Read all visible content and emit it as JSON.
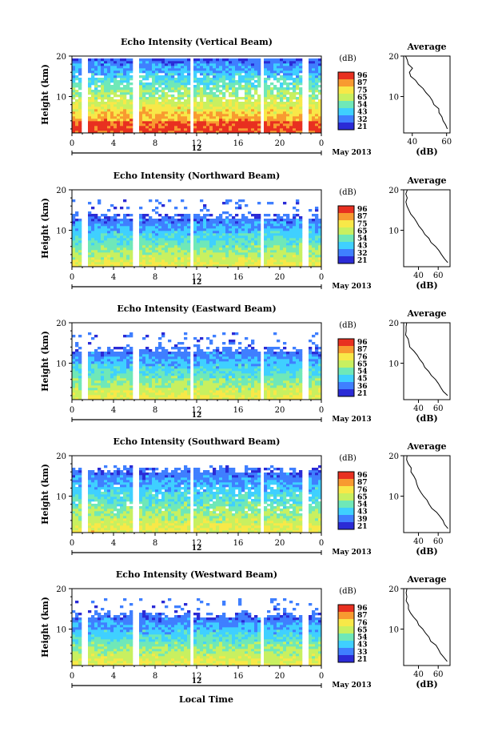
{
  "chart_data": [
    {
      "type": "heatmap",
      "title": "Echo Intensity (Vertical Beam)",
      "ylabel": "Height (km)",
      "yticks": [
        "20",
        "10"
      ],
      "xticks": [
        "0",
        "4",
        "8",
        "12",
        "16",
        "20",
        "0"
      ],
      "date_label": "12",
      "month_label": "May 2013",
      "ylim": [
        1,
        20
      ],
      "xlim": [
        0,
        24
      ],
      "colorbar_unit": "(dB)",
      "colorbar_ticks": [
        "96",
        "87",
        "75",
        "65",
        "54",
        "43",
        "32",
        "21"
      ],
      "avg": {
        "title": "Average",
        "xlabel": "(dB)",
        "xticks": [
          "40",
          "60"
        ],
        "yticks": [
          "20",
          "10"
        ],
        "xlim": [
          35,
          62
        ],
        "x": [
          36,
          37,
          38,
          40,
          38,
          39,
          42,
          44,
          46,
          48,
          50,
          52,
          53,
          55,
          56,
          57,
          58,
          59,
          60
        ],
        "y": [
          20,
          19,
          18,
          17,
          16,
          15,
          14,
          13,
          12,
          11,
          10,
          9,
          8,
          7,
          6,
          5,
          4,
          3,
          2
        ]
      },
      "gaps": [
        1,
        6,
        11.4,
        18.2,
        22.4
      ]
    },
    {
      "type": "heatmap",
      "title": "Echo Intensity (Northward Beam)",
      "ylabel": "Height (km)",
      "yticks": [
        "20",
        "10"
      ],
      "xticks": [
        "0",
        "4",
        "8",
        "12",
        "16",
        "20",
        "0"
      ],
      "date_label": "12",
      "month_label": "May 2013",
      "ylim": [
        1,
        20
      ],
      "xlim": [
        0,
        24
      ],
      "colorbar_unit": "(dB)",
      "colorbar_ticks": [
        "96",
        "87",
        "75",
        "65",
        "54",
        "43",
        "32",
        "21"
      ],
      "avg": {
        "title": "Average",
        "xlabel": "(dB)",
        "xticks": [
          "40",
          "60"
        ],
        "yticks": [
          "20",
          "10"
        ],
        "xlim": [
          25,
          72
        ],
        "x": [
          28,
          27,
          28,
          27,
          29,
          30,
          32,
          35,
          38,
          41,
          44,
          47,
          50,
          53,
          57,
          60,
          63,
          66,
          69
        ],
        "y": [
          20,
          19,
          18,
          17,
          16,
          15,
          14,
          13,
          12,
          11,
          10,
          9,
          8,
          7,
          6,
          5,
          4,
          3,
          2
        ]
      },
      "gaps": [
        1,
        6,
        11.4,
        18.2,
        22.4
      ]
    },
    {
      "type": "heatmap",
      "title": "Echo Intensity (Eastward Beam)",
      "ylabel": "Height (km)",
      "yticks": [
        "20",
        "10"
      ],
      "xticks": [
        "0",
        "4",
        "8",
        "12",
        "16",
        "20",
        "0"
      ],
      "date_label": "12",
      "month_label": "May 2013",
      "ylim": [
        1,
        20
      ],
      "xlim": [
        0,
        24
      ],
      "colorbar_unit": "(dB)",
      "colorbar_ticks": [
        "96",
        "87",
        "76",
        "65",
        "54",
        "45",
        "36",
        "21"
      ],
      "avg": {
        "title": "Average",
        "xlabel": "(dB)",
        "xticks": [
          "40",
          "60"
        ],
        "yticks": [
          "20",
          "10"
        ],
        "xlim": [
          25,
          72
        ],
        "x": [
          28,
          27,
          28,
          27,
          29,
          30,
          32,
          35,
          38,
          41,
          44,
          47,
          50,
          53,
          57,
          60,
          63,
          66,
          69
        ],
        "y": [
          20,
          19,
          18,
          17,
          16,
          15,
          14,
          13,
          12,
          11,
          10,
          9,
          8,
          7,
          6,
          5,
          4,
          3,
          2
        ]
      },
      "gaps": [
        1,
        6,
        11.4,
        18.2,
        22.4
      ]
    },
    {
      "type": "heatmap",
      "title": "Echo Intensity (Southward Beam)",
      "ylabel": "Height (km)",
      "yticks": [
        "20",
        "10"
      ],
      "xticks": [
        "0",
        "4",
        "8",
        "12",
        "16",
        "20",
        "0"
      ],
      "date_label": "12",
      "month_label": "May 2013",
      "ylim": [
        1,
        20
      ],
      "xlim": [
        0,
        24
      ],
      "colorbar_unit": "(dB)",
      "colorbar_ticks": [
        "96",
        "87",
        "76",
        "65",
        "54",
        "43",
        "39",
        "21"
      ],
      "avg": {
        "title": "Average",
        "xlabel": "(dB)",
        "xticks": [
          "40",
          "60"
        ],
        "yticks": [
          "20",
          "10"
        ],
        "xlim": [
          25,
          72
        ],
        "x": [
          29,
          28,
          30,
          32,
          33,
          35,
          37,
          38,
          40,
          43,
          45,
          48,
          51,
          54,
          58,
          61,
          64,
          67,
          70
        ],
        "y": [
          20,
          19,
          18,
          17,
          16,
          15,
          14,
          13,
          12,
          11,
          10,
          9,
          8,
          7,
          6,
          5,
          4,
          3,
          2
        ]
      },
      "gaps": [
        1,
        6,
        11.4,
        18.2,
        22.4
      ]
    },
    {
      "type": "heatmap",
      "title": "Echo Intensity (Westward Beam)",
      "ylabel": "Height (km)",
      "yticks": [
        "20",
        "10"
      ],
      "xticks": [
        "0",
        "4",
        "8",
        "12",
        "16",
        "20",
        "0"
      ],
      "date_label": "12",
      "month_label": "May 2013",
      "ylim": [
        1,
        20
      ],
      "xlim": [
        0,
        24
      ],
      "colorbar_unit": "(dB)",
      "colorbar_ticks": [
        "96",
        "87",
        "76",
        "65",
        "54",
        "43",
        "33",
        "21"
      ],
      "avg": {
        "title": "Average",
        "xlabel": "(dB)",
        "xticks": [
          "40",
          "60"
        ],
        "yticks": [
          "20",
          "10"
        ],
        "xlim": [
          25,
          72
        ],
        "x": [
          28,
          27,
          28,
          27,
          29,
          30,
          32,
          35,
          38,
          41,
          44,
          47,
          50,
          53,
          57,
          60,
          63,
          66,
          69
        ],
        "y": [
          20,
          19,
          18,
          17,
          16,
          15,
          14,
          13,
          12,
          11,
          10,
          9,
          8,
          7,
          6,
          5,
          4,
          3,
          2
        ]
      },
      "gaps": [
        1,
        6,
        11.4,
        18.2,
        22.4
      ]
    }
  ],
  "xlabel": "Local Time",
  "colors": {
    "scale": [
      "#2b2bd6",
      "#3f7fff",
      "#3fd0ff",
      "#6fe8b8",
      "#c8f060",
      "#f8e848",
      "#f89a30",
      "#e83020"
    ]
  }
}
